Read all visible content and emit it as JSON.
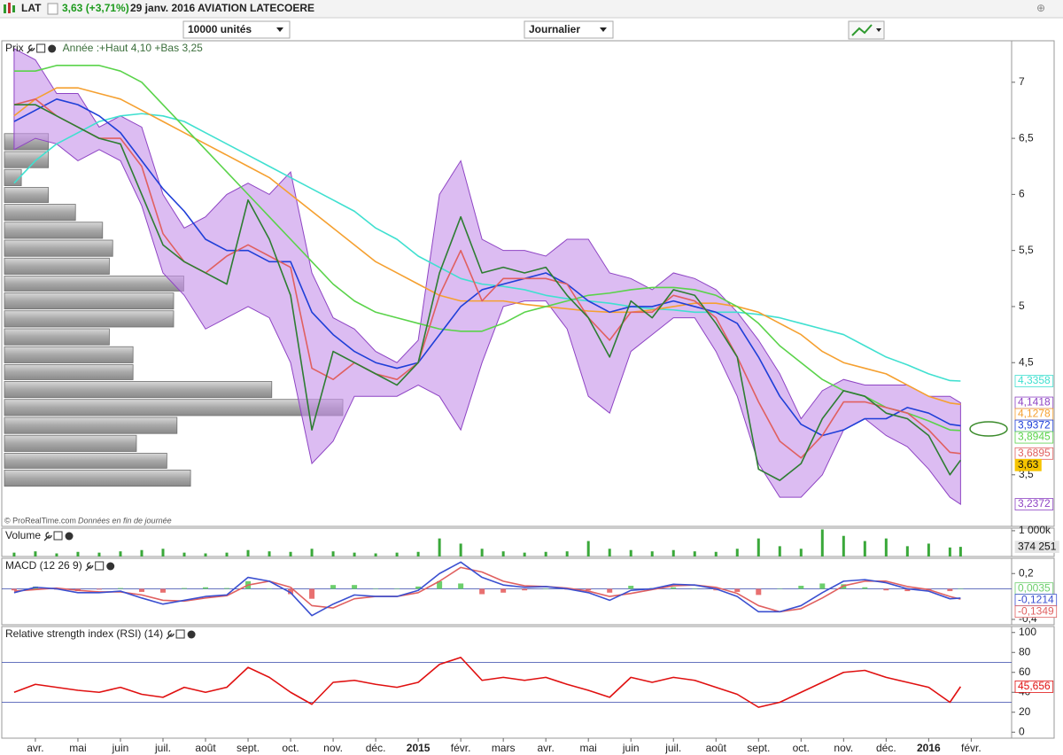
{
  "header": {
    "symbol": "LAT",
    "quote": "3,63 (+3,71%)",
    "title": "29 janv. 2016 AVIATION LATECOERE"
  },
  "toolbar": {
    "units": "10000 unités",
    "period": "Journalier"
  },
  "footer": {
    "copyright": "© ProRealTime.com",
    "note": "Données en fin de journée"
  },
  "chart_data": [
    {
      "type": "line",
      "title": "Prix",
      "subtitle": "Année :+Haut 4,10 +Bas 3,25",
      "x": [
        -0.5,
        0,
        0.5,
        1,
        1.5,
        2,
        2.5,
        3,
        3.5,
        4,
        4.5,
        5,
        5.5,
        6,
        6.5,
        7,
        7.5,
        8,
        8.5,
        9,
        9.5,
        10,
        10.5,
        11,
        11.5,
        12,
        12.5,
        13,
        13.5,
        14,
        14.5,
        15,
        15.5,
        16,
        16.5,
        17,
        17.5,
        18,
        18.5,
        19,
        19.5,
        20,
        20.5,
        21,
        21.5,
        21.75
      ],
      "xlim": [
        -0.79,
        22.95
      ],
      "ylim": [
        3.04,
        7.37
      ],
      "yticks": [
        {
          "value": 3.5,
          "label": "3,5"
        },
        {
          "value": 4.5,
          "label": "4,5"
        },
        5,
        {
          "value": 5.5,
          "label": "5,5"
        },
        6,
        {
          "value": 6.5,
          "label": "6,5"
        },
        7
      ],
      "volume_profile": {
        "color": "#b0b0b0",
        "bins": [
          3.39,
          3.55,
          3.7,
          3.86,
          4.02,
          4.18,
          4.34,
          4.49,
          4.65,
          4.81,
          4.97,
          5.13,
          5.28,
          5.44,
          5.6,
          5.76,
          5.92,
          6.07,
          6.23,
          6.39,
          6.55
        ],
        "values": [
          55,
          48,
          39,
          51,
          100,
          79,
          38,
          38,
          31,
          50,
          50,
          53,
          31,
          32,
          29,
          21,
          13,
          5,
          13,
          13
        ]
      },
      "band": {
        "color": "#c590ea",
        "line_color": "#8e44c4",
        "upper": [
          7.3,
          7.2,
          6.9,
          6.9,
          6.6,
          6.7,
          6.6,
          6.0,
          5.7,
          5.8,
          6.0,
          6.1,
          6.0,
          6.2,
          5.3,
          4.9,
          4.8,
          4.6,
          4.5,
          4.7,
          6.0,
          6.3,
          5.6,
          5.5,
          5.5,
          5.45,
          5.6,
          5.6,
          5.3,
          5.25,
          5.15,
          5.3,
          5.25,
          5.15,
          4.95,
          4.7,
          4.4,
          4.0,
          4.25,
          4.35,
          4.3,
          4.3,
          4.3,
          4.2,
          4.2,
          4.1418
        ],
        "lower": [
          6.4,
          6.5,
          6.45,
          6.3,
          6.4,
          6.3,
          5.9,
          5.3,
          5.1,
          4.8,
          4.9,
          5.0,
          4.9,
          4.5,
          3.6,
          3.8,
          4.2,
          4.2,
          4.2,
          4.3,
          4.2,
          3.9,
          4.5,
          5.0,
          5.05,
          5.05,
          4.8,
          4.2,
          4.05,
          4.6,
          4.75,
          4.9,
          4.9,
          4.6,
          4.2,
          3.6,
          3.3,
          3.3,
          3.5,
          3.9,
          4.0,
          3.85,
          3.75,
          3.55,
          3.3,
          3.2372
        ],
        "upper_label": "4,1418",
        "lower_label": "3,2372"
      },
      "series": [
        {
          "color": "#40e0d0",
          "last_label": "4,3358",
          "values": [
            6.1,
            6.3,
            6.45,
            6.55,
            6.65,
            6.7,
            6.72,
            6.7,
            6.65,
            6.55,
            6.45,
            6.35,
            6.25,
            6.15,
            6.05,
            5.95,
            5.85,
            5.7,
            5.6,
            5.45,
            5.35,
            5.25,
            5.2,
            5.18,
            5.15,
            5.1,
            5.07,
            5.05,
            5.03,
            5.0,
            4.98,
            4.97,
            4.95,
            4.95,
            4.95,
            4.93,
            4.9,
            4.85,
            4.8,
            4.75,
            4.65,
            4.55,
            4.48,
            4.4,
            4.34,
            4.3358
          ]
        },
        {
          "color": "#f5a030",
          "last_label": "4,1278",
          "values": [
            6.7,
            6.85,
            6.95,
            6.95,
            6.9,
            6.85,
            6.75,
            6.65,
            6.55,
            6.45,
            6.35,
            6.25,
            6.15,
            6.0,
            5.85,
            5.7,
            5.55,
            5.4,
            5.3,
            5.2,
            5.1,
            5.05,
            5.05,
            5.05,
            5.02,
            5.0,
            4.98,
            4.96,
            4.95,
            4.95,
            4.97,
            5.0,
            5.03,
            5.03,
            5.0,
            4.95,
            4.85,
            4.75,
            4.6,
            4.5,
            4.45,
            4.4,
            4.3,
            4.2,
            4.14,
            4.1278
          ]
        },
        {
          "color": "#5ad34a",
          "last_label": "3,8945",
          "values": [
            7.1,
            7.1,
            7.15,
            7.15,
            7.15,
            7.1,
            7.0,
            6.8,
            6.6,
            6.4,
            6.2,
            6.0,
            5.8,
            5.6,
            5.4,
            5.2,
            5.05,
            4.95,
            4.9,
            4.85,
            4.8,
            4.78,
            4.78,
            4.85,
            4.95,
            5.0,
            5.05,
            5.1,
            5.12,
            5.15,
            5.17,
            5.17,
            5.15,
            5.1,
            5.0,
            4.85,
            4.65,
            4.5,
            4.35,
            4.25,
            4.2,
            4.1,
            4.05,
            3.98,
            3.9,
            3.8945
          ]
        },
        {
          "color": "#1f3fd8",
          "last_label": "3,9372",
          "values": [
            6.65,
            6.75,
            6.85,
            6.8,
            6.7,
            6.55,
            6.3,
            6.05,
            5.85,
            5.6,
            5.5,
            5.5,
            5.4,
            5.4,
            4.95,
            4.75,
            4.6,
            4.5,
            4.45,
            4.5,
            4.75,
            5.0,
            5.15,
            5.2,
            5.25,
            5.3,
            5.2,
            5.05,
            4.95,
            5.0,
            5.0,
            5.05,
            5.0,
            4.95,
            4.85,
            4.55,
            4.2,
            3.95,
            3.85,
            3.9,
            4.0,
            4.0,
            4.1,
            4.05,
            3.95,
            3.9372
          ]
        },
        {
          "color": "#e06060",
          "last_label": "3,6895",
          "values": [
            6.8,
            6.85,
            6.7,
            6.6,
            6.5,
            6.5,
            6.25,
            5.65,
            5.4,
            5.3,
            5.45,
            5.55,
            5.45,
            5.35,
            4.45,
            4.35,
            4.5,
            4.4,
            4.35,
            4.5,
            5.1,
            5.5,
            5.05,
            5.25,
            5.25,
            5.25,
            5.2,
            4.9,
            4.7,
            4.95,
            4.95,
            5.1,
            5.05,
            4.9,
            4.55,
            4.15,
            3.8,
            3.65,
            3.85,
            4.15,
            4.15,
            4.1,
            4.05,
            3.9,
            3.7,
            3.6895
          ]
        },
        {
          "color": "#2e7d32",
          "last_label": "3,63",
          "label_fill": "#f5c400",
          "values": [
            6.8,
            6.8,
            6.7,
            6.6,
            6.5,
            6.45,
            6.0,
            5.55,
            5.4,
            5.3,
            5.2,
            5.95,
            5.6,
            5.1,
            3.9,
            4.6,
            4.5,
            4.4,
            4.3,
            4.5,
            5.3,
            5.8,
            5.3,
            5.35,
            5.3,
            5.35,
            5.1,
            4.9,
            4.55,
            5.05,
            4.9,
            5.15,
            5.1,
            4.85,
            4.55,
            3.55,
            3.45,
            3.6,
            4.0,
            4.25,
            4.2,
            4.05,
            4.0,
            3.85,
            3.5,
            3.63
          ]
        }
      ]
    },
    {
      "type": "bar",
      "title": "Volume",
      "color": "#3aa83a",
      "x": [
        -0.5,
        0,
        0.5,
        1,
        1.5,
        2,
        2.5,
        3,
        3.5,
        4,
        4.5,
        5,
        5.5,
        6,
        6.5,
        7,
        7.5,
        8,
        8.5,
        9,
        9.5,
        10,
        10.5,
        11,
        11.5,
        12,
        12.5,
        13,
        13.5,
        14,
        14.5,
        15,
        15.5,
        16,
        16.5,
        17,
        17.5,
        18,
        18.5,
        19,
        19.5,
        20,
        20.5,
        21,
        21.5,
        21.75
      ],
      "xlim": [
        -0.79,
        22.95
      ],
      "ylim": [
        0,
        1100000
      ],
      "yticks": [
        {
          "value": 1000000,
          "label": "1 000k"
        }
      ],
      "values": [
        150000,
        200000,
        120000,
        180000,
        150000,
        200000,
        250000,
        300000,
        150000,
        120000,
        150000,
        250000,
        200000,
        180000,
        300000,
        200000,
        150000,
        120000,
        150000,
        180000,
        700000,
        500000,
        300000,
        200000,
        150000,
        180000,
        200000,
        600000,
        300000,
        250000,
        200000,
        250000,
        200000,
        180000,
        300000,
        700000,
        400000,
        300000,
        1050000,
        800000,
        600000,
        700000,
        400000,
        500000,
        350000,
        374251
      ],
      "last_label": "374 251"
    },
    {
      "type": "line",
      "title": "MACD (12 26 9)",
      "x": [
        -0.5,
        0,
        0.5,
        1,
        1.5,
        2,
        2.5,
        3,
        3.5,
        4,
        4.5,
        5,
        5.5,
        6,
        6.5,
        7,
        7.5,
        8,
        8.5,
        9,
        9.5,
        10,
        10.5,
        11,
        11.5,
        12,
        12.5,
        13,
        13.5,
        14,
        14.5,
        15,
        15.5,
        16,
        16.5,
        17,
        17.5,
        18,
        18.5,
        19,
        19.5,
        20,
        20.5,
        21,
        21.5,
        21.75
      ],
      "xlim": [
        -0.79,
        22.95
      ],
      "ylim": [
        -0.47,
        0.4
      ],
      "yticks": [
        {
          "value": 0.2,
          "label": "0,2"
        },
        {
          "value": -0.4,
          "label": "-0,4"
        }
      ],
      "levels": [
        0
      ],
      "level_color": "#3344aa",
      "series": [
        {
          "style": "bars",
          "color": "#6ccf6c",
          "negative_color": "#e87070",
          "last_label": "0,0035",
          "values": [
            -0.02,
            0.03,
            -0.01,
            -0.03,
            -0.01,
            0.01,
            -0.04,
            -0.05,
            0.01,
            0.02,
            0.01,
            0.1,
            0,
            -0.07,
            -0.13,
            0.05,
            0.05,
            0,
            0,
            0.03,
            0.1,
            0.07,
            -0.07,
            -0.05,
            -0.02,
            0,
            -0.01,
            -0.02,
            -0.05,
            0.04,
            0.01,
            0.02,
            0,
            -0.02,
            -0.04,
            -0.08,
            0,
            0.04,
            0.07,
            0.06,
            0.02,
            -0.02,
            -0.03,
            -0.02,
            -0.03,
            0.0035
          ]
        },
        {
          "color": "#e06060",
          "last_label": "-0,1349",
          "values": [
            -0.03,
            -0.01,
            0.01,
            -0.02,
            -0.04,
            -0.04,
            -0.08,
            -0.15,
            -0.16,
            -0.12,
            -0.09,
            0.05,
            0.1,
            0.02,
            -0.22,
            -0.25,
            -0.13,
            -0.1,
            -0.1,
            -0.05,
            0.1,
            0.28,
            0.22,
            0.1,
            0.04,
            0.03,
            0.01,
            -0.03,
            -0.1,
            -0.06,
            -0.01,
            0.04,
            0.05,
            0.02,
            -0.06,
            -0.22,
            -0.3,
            -0.26,
            -0.12,
            0.04,
            0.1,
            0.1,
            0.03,
            -0.01,
            -0.1,
            -0.1349
          ]
        },
        {
          "color": "#3a4fd0",
          "last_label": "-0,1214",
          "values": [
            -0.05,
            0.02,
            0.0,
            -0.05,
            -0.05,
            -0.03,
            -0.12,
            -0.2,
            -0.15,
            -0.1,
            -0.08,
            0.15,
            0.1,
            -0.05,
            -0.35,
            -0.2,
            -0.08,
            -0.1,
            -0.1,
            -0.02,
            0.2,
            0.35,
            0.15,
            0.05,
            0.02,
            0.03,
            0.0,
            -0.05,
            -0.15,
            -0.02,
            0.0,
            0.06,
            0.05,
            0.0,
            -0.1,
            -0.3,
            -0.3,
            -0.22,
            -0.05,
            0.1,
            0.12,
            0.08,
            0.0,
            -0.03,
            -0.13,
            -0.1214
          ]
        }
      ]
    },
    {
      "type": "line",
      "title": "Relative strength index (RSI) (14)",
      "x": [
        -0.5,
        0,
        0.5,
        1,
        1.5,
        2,
        2.5,
        3,
        3.5,
        4,
        4.5,
        5,
        5.5,
        6,
        6.5,
        7,
        7.5,
        8,
        8.5,
        9,
        9.5,
        10,
        10.5,
        11,
        11.5,
        12,
        12.5,
        13,
        13.5,
        14,
        14.5,
        15,
        15.5,
        16,
        16.5,
        17,
        17.5,
        18,
        18.5,
        19,
        19.5,
        20,
        20.5,
        21,
        21.5,
        21.75
      ],
      "xlim": [
        -0.79,
        22.95
      ],
      "ylim": [
        -6,
        106
      ],
      "yticks": [
        0,
        20,
        40,
        60,
        80,
        100
      ],
      "xticks": [
        {
          "value": 0,
          "label": "avr."
        },
        {
          "value": 1,
          "label": "mai"
        },
        {
          "value": 2,
          "label": "juin"
        },
        {
          "value": 3,
          "label": "juil."
        },
        {
          "value": 4,
          "label": "août"
        },
        {
          "value": 5,
          "label": "sept."
        },
        {
          "value": 6,
          "label": "oct."
        },
        {
          "value": 7,
          "label": "nov."
        },
        {
          "value": 8,
          "label": "déc."
        },
        {
          "value": 9,
          "label": "2015"
        },
        {
          "value": 10,
          "label": "févr."
        },
        {
          "value": 11,
          "label": "mars"
        },
        {
          "value": 12,
          "label": "avr."
        },
        {
          "value": 13,
          "label": "mai"
        },
        {
          "value": 14,
          "label": "juin"
        },
        {
          "value": 15,
          "label": "juil."
        },
        {
          "value": 16,
          "label": "août"
        },
        {
          "value": 17,
          "label": "sept."
        },
        {
          "value": 18,
          "label": "oct."
        },
        {
          "value": 19,
          "label": "nov."
        },
        {
          "value": 20,
          "label": "déc."
        },
        {
          "value": 21,
          "label": "2016"
        },
        {
          "value": 22,
          "label": "févr."
        }
      ],
      "levels": [
        70,
        30
      ],
      "level_color": "#3344aa",
      "series": [
        {
          "color": "#e01010",
          "last_label": "45,656",
          "values": [
            40,
            48,
            45,
            42,
            40,
            45,
            38,
            35,
            45,
            40,
            45,
            65,
            55,
            40,
            28,
            50,
            52,
            48,
            45,
            50,
            68,
            75,
            52,
            55,
            52,
            55,
            48,
            42,
            35,
            55,
            50,
            55,
            52,
            45,
            38,
            25,
            30,
            40,
            50,
            60,
            62,
            55,
            50,
            45,
            30,
            45.656
          ]
        }
      ]
    }
  ]
}
